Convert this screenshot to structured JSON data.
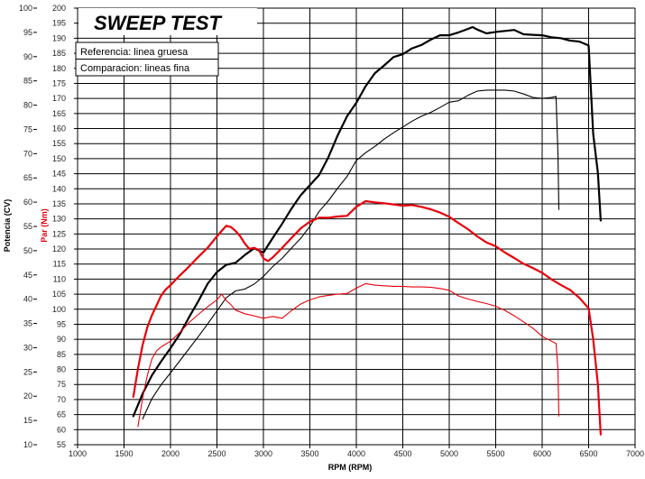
{
  "chart_data": {
    "type": "line",
    "title": "SWEEP TEST",
    "xlabel": "RPM (RPM)",
    "ylabel_left": "Potencia (CV)",
    "ylabel_right": "Par (Nm)",
    "xlim": [
      1000,
      7000
    ],
    "x_ticks": [
      "1000",
      "1500",
      "2000",
      "2500",
      "3000",
      "3500",
      "4000",
      "4500",
      "5000",
      "5500",
      "6000",
      "6500",
      "7000"
    ],
    "ylim_power": [
      15,
      100
    ],
    "y_ticks_power": [
      "10",
      "15",
      "20",
      "25",
      "30",
      "35",
      "40",
      "45",
      "50",
      "55",
      "60",
      "65",
      "70",
      "75",
      "80",
      "85",
      "90",
      "95",
      "100"
    ],
    "ylim_torque": [
      55,
      200
    ],
    "y_ticks_torque": [
      "55",
      "60",
      "65",
      "70",
      "75",
      "80",
      "85",
      "90",
      "95",
      "100",
      "105",
      "110",
      "115",
      "120",
      "125",
      "130",
      "135",
      "140",
      "145",
      "150",
      "155",
      "160",
      "165",
      "170",
      "175",
      "180",
      "185",
      "190",
      "195",
      "200"
    ],
    "grid": true,
    "legend": {
      "position": "top-left",
      "entries": [
        "Referencia: linea gruesa",
        "Comparacion: lineas fina"
      ]
    },
    "colors": {
      "power": "#000000",
      "torque": "#e8000b"
    },
    "series": [
      {
        "axis": "power",
        "style": "thick",
        "x": [
          1600,
          1700,
          1800,
          1900,
          2000,
          2100,
          2200,
          2300,
          2400,
          2500,
          2600,
          2700,
          2800,
          2900,
          3000,
          3100,
          3200,
          3300,
          3400,
          3500,
          3600,
          3700,
          3800,
          3900,
          4000,
          4100,
          4200,
          4300,
          4400,
          4500,
          4600,
          4700,
          4800,
          4900,
          5000,
          5100,
          5200,
          5250,
          5300,
          5400,
          5500,
          5600,
          5700,
          5800,
          5900,
          6000,
          6100,
          6200,
          6300,
          6400,
          6500,
          6550,
          6600,
          6630
        ],
        "values": [
          15.9,
          20.5,
          24.3,
          27.2,
          29.9,
          32.8,
          36.3,
          39.6,
          43.2,
          45.6,
          47.1,
          47.5,
          49.1,
          50.5,
          49.6,
          52.6,
          55.5,
          58.6,
          61.4,
          63.5,
          65.6,
          69.3,
          73.8,
          77.7,
          80.5,
          83.9,
          86.6,
          88.2,
          89.9,
          90.5,
          91.7,
          92.4,
          93.5,
          94.4,
          94.4,
          95.0,
          95.7,
          96.1,
          95.6,
          94.8,
          95.1,
          95.3,
          95.5,
          94.6,
          94.5,
          94.4,
          94.0,
          93.8,
          93.3,
          93.1,
          92.3,
          74.0,
          66.0,
          56.2
        ]
      },
      {
        "axis": "power",
        "style": "thin",
        "x": [
          1700,
          1800,
          1900,
          2000,
          2100,
          2200,
          2300,
          2400,
          2500,
          2600,
          2700,
          2800,
          2900,
          3000,
          3100,
          3200,
          3300,
          3400,
          3500,
          3600,
          3700,
          3800,
          3900,
          4000,
          4100,
          4200,
          4300,
          4400,
          4500,
          4600,
          4700,
          4800,
          4900,
          5000,
          5100,
          5200,
          5300,
          5400,
          5500,
          5600,
          5700,
          5800,
          5900,
          6000,
          6100,
          6150,
          6170,
          6180
        ],
        "values": [
          15.3,
          19.5,
          22.4,
          24.8,
          27.3,
          29.8,
          32.3,
          34.9,
          37.6,
          40.3,
          41.7,
          42.1,
          43.1,
          44.7,
          46.7,
          48.4,
          50.5,
          52.5,
          55.0,
          58.1,
          60.3,
          62.9,
          65.3,
          68.6,
          70.2,
          71.5,
          73.0,
          74.3,
          75.5,
          76.7,
          77.7,
          78.5,
          79.5,
          80.6,
          80.9,
          82.0,
          82.9,
          83.1,
          83.1,
          83.1,
          82.9,
          82.3,
          81.6,
          81.4,
          81.6,
          81.8,
          70.0,
          58.5
        ]
      },
      {
        "axis": "torque",
        "style": "thick",
        "x": [
          1600,
          1650,
          1700,
          1750,
          1800,
          1850,
          1900,
          1950,
          2000,
          2100,
          2200,
          2300,
          2400,
          2500,
          2550,
          2600,
          2650,
          2700,
          2750,
          2800,
          2850,
          2900,
          2950,
          3000,
          3050,
          3100,
          3200,
          3300,
          3400,
          3500,
          3600,
          3700,
          3800,
          3900,
          4000,
          4100,
          4200,
          4300,
          4400,
          4500,
          4600,
          4700,
          4800,
          4900,
          5000,
          5100,
          5200,
          5300,
          5400,
          5500,
          5600,
          5700,
          5800,
          5900,
          6000,
          6100,
          6200,
          6300,
          6400,
          6500,
          6550,
          6600,
          6630
        ],
        "values": [
          70.9,
          80.2,
          88.1,
          94.0,
          98.0,
          101.3,
          104.6,
          106.6,
          108.0,
          111.2,
          114.2,
          117.4,
          120.4,
          124.2,
          126.0,
          127.7,
          127.3,
          126.0,
          124.2,
          121.8,
          120.0,
          120.4,
          119.7,
          116.9,
          116.0,
          117.2,
          120.3,
          123.6,
          126.8,
          129.1,
          130.4,
          130.4,
          130.8,
          131.0,
          134.0,
          135.9,
          135.5,
          135.2,
          134.8,
          134.4,
          134.6,
          134.0,
          133.2,
          132.1,
          130.7,
          128.6,
          126.6,
          124.2,
          122.2,
          120.9,
          118.8,
          117.0,
          115.1,
          113.7,
          112.1,
          109.9,
          108.1,
          106.4,
          103.8,
          100.3,
          90.0,
          75.0,
          58.4
        ]
      },
      {
        "axis": "torque",
        "style": "thin",
        "x": [
          1650,
          1700,
          1750,
          1800,
          1850,
          1900,
          2000,
          2100,
          2200,
          2300,
          2400,
          2500,
          2550,
          2600,
          2650,
          2700,
          2800,
          2900,
          3000,
          3100,
          3200,
          3300,
          3400,
          3500,
          3600,
          3700,
          3800,
          3900,
          4000,
          4100,
          4200,
          4300,
          4400,
          4500,
          4600,
          4700,
          4800,
          4900,
          5000,
          5100,
          5200,
          5300,
          5400,
          5500,
          5600,
          5700,
          5800,
          5900,
          6000,
          6100,
          6150,
          6170,
          6180
        ],
        "values": [
          61.0,
          70.5,
          78.0,
          83.5,
          86.2,
          87.5,
          89.4,
          92.3,
          95.6,
          98.3,
          100.8,
          103.1,
          105.0,
          102.9,
          101.5,
          99.7,
          98.5,
          97.8,
          97.0,
          97.6,
          97.0,
          99.5,
          101.7,
          103.1,
          104.1,
          104.6,
          105.0,
          105.2,
          107.0,
          108.5,
          108.0,
          107.8,
          107.6,
          107.6,
          107.4,
          107.4,
          107.3,
          106.9,
          106.3,
          104.4,
          103.4,
          102.6,
          101.9,
          101.0,
          99.6,
          97.8,
          95.8,
          93.7,
          91.0,
          89.4,
          88.6,
          80.0,
          64.5
        ]
      }
    ]
  }
}
